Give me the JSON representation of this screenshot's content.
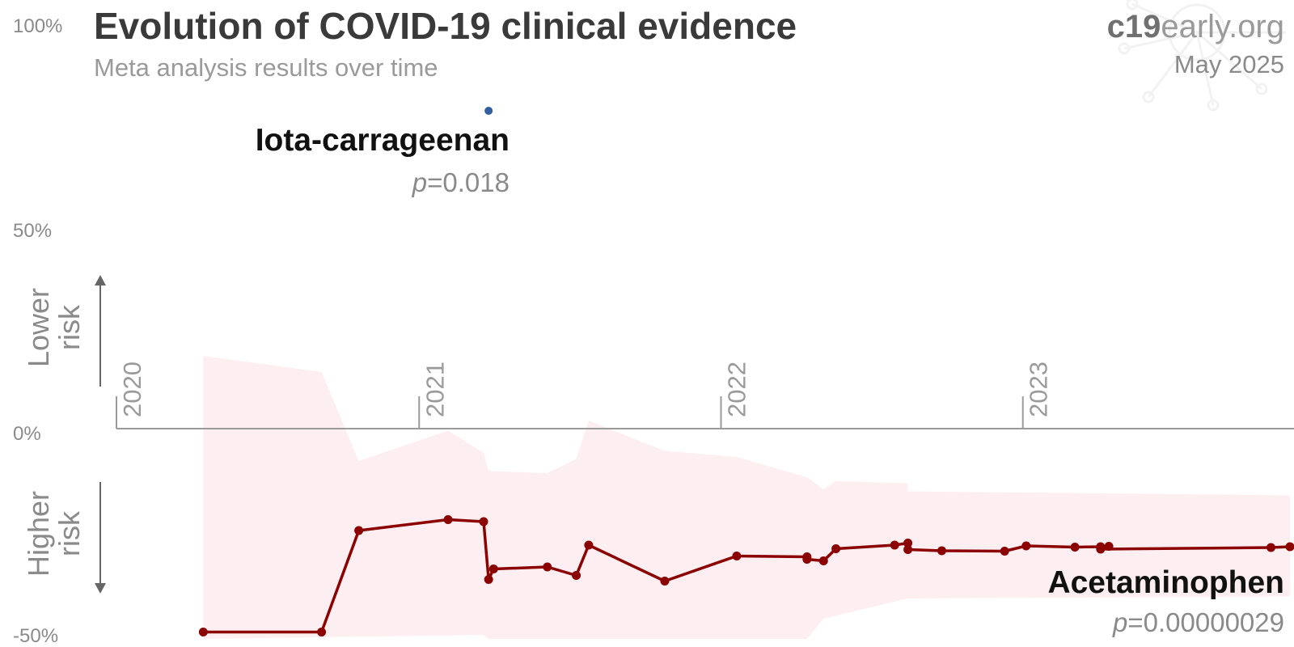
{
  "header": {
    "title": "Evolution of COVID-19 clinical evidence",
    "subtitle": "Meta analysis results over time",
    "brand_bold": "c19",
    "brand_rest": "early.org",
    "date": "May 2025"
  },
  "axis": {
    "y_ticks": [
      "100%",
      "50%",
      "0%",
      "-50%"
    ],
    "x_ticks": [
      "2020",
      "2021",
      "2022",
      "2023"
    ],
    "lower_risk": [
      "Lower",
      "risk"
    ],
    "higher_risk": [
      "Higher",
      "risk"
    ]
  },
  "colors": {
    "acetaminophen": "#8b0000",
    "acetaminophen_band": "#fdeef1",
    "iota": "#2f5f9e",
    "axis": "#9a9a9a",
    "arrow": "#666666"
  },
  "chart_data": {
    "type": "line",
    "title": "Evolution of COVID-19 clinical evidence",
    "subtitle": "Meta analysis results over time",
    "x_axis": "date",
    "xlim": [
      "2020-01-01",
      "2023-11-20"
    ],
    "ylim": [
      -50,
      100
    ],
    "ylabel_top": "Lower risk",
    "ylabel_bottom": "Higher risk",
    "series": [
      {
        "name": "Acetaminophen",
        "p_label": "p",
        "p_value": "=0.00000029",
        "points": [
          {
            "x": "2020-04-15",
            "y": -50.3
          },
          {
            "x": "2020-09-05",
            "y": -50.3
          },
          {
            "x": "2020-10-20",
            "y": -25.2
          },
          {
            "x": "2021-02-05",
            "y": -22.5
          },
          {
            "x": "2021-03-20",
            "y": -23.0
          },
          {
            "x": "2021-03-26",
            "y": -37.3
          },
          {
            "x": "2021-04-01",
            "y": -34.7
          },
          {
            "x": "2021-06-05",
            "y": -34.2
          },
          {
            "x": "2021-07-10",
            "y": -36.3
          },
          {
            "x": "2021-07-25",
            "y": -28.8
          },
          {
            "x": "2021-10-25",
            "y": -37.7
          },
          {
            "x": "2022-01-20",
            "y": -31.5
          },
          {
            "x": "2022-04-15",
            "y": -31.7
          },
          {
            "x": "2022-04-15",
            "y": -32.3
          },
          {
            "x": "2022-05-05",
            "y": -32.7
          },
          {
            "x": "2022-05-20",
            "y": -29.7
          },
          {
            "x": "2022-07-30",
            "y": -28.8
          },
          {
            "x": "2022-08-15",
            "y": -28.3
          },
          {
            "x": "2022-08-15",
            "y": -29.9
          },
          {
            "x": "2022-09-25",
            "y": -30.2
          },
          {
            "x": "2022-12-10",
            "y": -30.3
          },
          {
            "x": "2023-01-05",
            "y": -29.0
          },
          {
            "x": "2023-03-05",
            "y": -29.3
          },
          {
            "x": "2023-04-05",
            "y": -29.2
          },
          {
            "x": "2023-04-15",
            "y": -29.1
          },
          {
            "x": "2023-04-05",
            "y": -29.8
          },
          {
            "x": "2023-10-28",
            "y": -29.4
          },
          {
            "x": "2023-11-20",
            "y": -29.2
          }
        ],
        "ci_upper": [
          {
            "x": "2020-04-15",
            "y": 18.0
          },
          {
            "x": "2020-09-05",
            "y": 14.0
          },
          {
            "x": "2020-10-20",
            "y": -8.0
          },
          {
            "x": "2021-02-05",
            "y": -0.5
          },
          {
            "x": "2021-03-20",
            "y": -6.0
          },
          {
            "x": "2021-03-26",
            "y": -10.5
          },
          {
            "x": "2021-06-05",
            "y": -11.0
          },
          {
            "x": "2021-07-10",
            "y": -7.5
          },
          {
            "x": "2021-07-25",
            "y": 2.0
          },
          {
            "x": "2021-10-25",
            "y": -5.5
          },
          {
            "x": "2022-01-20",
            "y": -7.0
          },
          {
            "x": "2022-04-15",
            "y": -12.0
          },
          {
            "x": "2022-05-05",
            "y": -15.0
          },
          {
            "x": "2022-05-20",
            "y": -13.0
          },
          {
            "x": "2022-08-15",
            "y": -13.5
          },
          {
            "x": "2022-08-15",
            "y": -15.5
          },
          {
            "x": "2023-11-20",
            "y": -16.5
          }
        ],
        "ci_lower": [
          {
            "x": "2020-04-15",
            "y": -52.0
          },
          {
            "x": "2021-03-20",
            "y": -51.0
          },
          {
            "x": "2021-03-26",
            "y": -52.0
          },
          {
            "x": "2022-04-15",
            "y": -52.0
          },
          {
            "x": "2022-05-05",
            "y": -47.0
          },
          {
            "x": "2022-08-15",
            "y": -42.0
          },
          {
            "x": "2023-11-20",
            "y": -41.5
          }
        ]
      },
      {
        "name": "Iota-carrageenan",
        "p_label": "p",
        "p_value": "=0.018",
        "points": [
          {
            "x": "2021-03-26",
            "y": 78.6
          }
        ]
      }
    ]
  }
}
